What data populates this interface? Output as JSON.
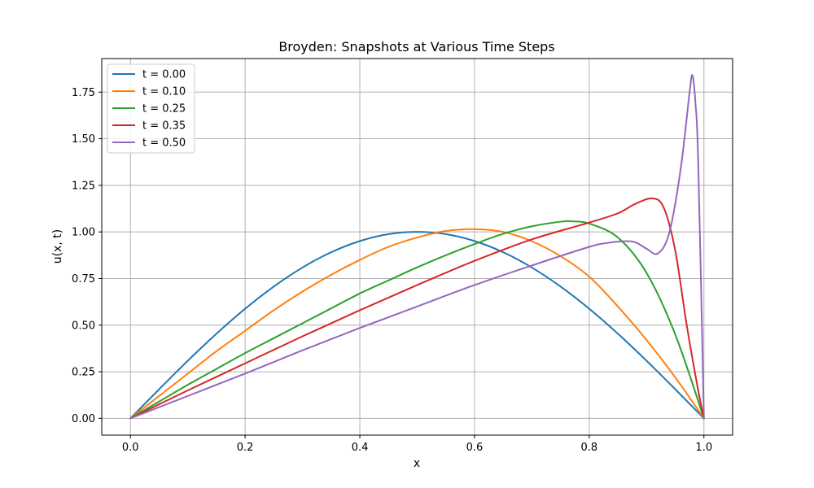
{
  "chart_data": {
    "type": "line",
    "title": "Broyden: Snapshots at Various Time Steps",
    "xlabel": "x",
    "ylabel": "u(x, t)",
    "xlim": [
      -0.05,
      1.05
    ],
    "ylim": [
      -0.09,
      1.93
    ],
    "xticks": [
      0.0,
      0.2,
      0.4,
      0.6,
      0.8,
      1.0
    ],
    "xtick_labels": [
      "0.0",
      "0.2",
      "0.4",
      "0.6",
      "0.8",
      "1.0"
    ],
    "yticks": [
      0.0,
      0.25,
      0.5,
      0.75,
      1.0,
      1.25,
      1.5,
      1.75
    ],
    "ytick_labels": [
      "0.00",
      "0.25",
      "0.50",
      "0.75",
      "1.00",
      "1.25",
      "1.50",
      "1.75"
    ],
    "grid": true,
    "legend_position": "top-left",
    "series": [
      {
        "name": "t = 0.00",
        "color": "#1f77b4",
        "x": [
          0.0,
          0.05,
          0.1,
          0.15,
          0.2,
          0.25,
          0.3,
          0.35,
          0.4,
          0.45,
          0.5,
          0.55,
          0.6,
          0.65,
          0.7,
          0.75,
          0.8,
          0.85,
          0.9,
          0.95,
          1.0
        ],
        "y": [
          0.0,
          0.156,
          0.309,
          0.454,
          0.588,
          0.707,
          0.809,
          0.891,
          0.951,
          0.988,
          1.0,
          0.988,
          0.951,
          0.891,
          0.809,
          0.707,
          0.588,
          0.454,
          0.309,
          0.156,
          0.0
        ]
      },
      {
        "name": "t = 0.10",
        "color": "#ff7f0e",
        "x": [
          0.0,
          0.05,
          0.1,
          0.15,
          0.2,
          0.25,
          0.3,
          0.35,
          0.4,
          0.45,
          0.5,
          0.55,
          0.6,
          0.65,
          0.7,
          0.75,
          0.8,
          0.85,
          0.9,
          0.95,
          1.0
        ],
        "y": [
          0.0,
          0.12,
          0.24,
          0.36,
          0.47,
          0.58,
          0.68,
          0.77,
          0.85,
          0.92,
          0.97,
          1.005,
          1.015,
          1.0,
          0.95,
          0.87,
          0.76,
          0.6,
          0.42,
          0.22,
          0.0
        ]
      },
      {
        "name": "t = 0.25",
        "color": "#2ca02c",
        "x": [
          0.0,
          0.05,
          0.1,
          0.15,
          0.2,
          0.25,
          0.3,
          0.35,
          0.4,
          0.45,
          0.5,
          0.55,
          0.6,
          0.65,
          0.7,
          0.75,
          0.77,
          0.8,
          0.85,
          0.9,
          0.95,
          1.0
        ],
        "y": [
          0.0,
          0.09,
          0.18,
          0.265,
          0.35,
          0.43,
          0.51,
          0.59,
          0.67,
          0.74,
          0.81,
          0.875,
          0.935,
          0.99,
          1.03,
          1.055,
          1.057,
          1.045,
          0.97,
          0.78,
          0.45,
          0.0
        ]
      },
      {
        "name": "t = 0.35",
        "color": "#d62728",
        "x": [
          0.0,
          0.1,
          0.2,
          0.3,
          0.4,
          0.5,
          0.6,
          0.7,
          0.8,
          0.85,
          0.88,
          0.91,
          0.93,
          0.95,
          0.97,
          0.99,
          1.0
        ],
        "y": [
          0.0,
          0.15,
          0.295,
          0.44,
          0.58,
          0.715,
          0.845,
          0.96,
          1.05,
          1.1,
          1.15,
          1.18,
          1.13,
          0.9,
          0.5,
          0.15,
          0.0
        ]
      },
      {
        "name": "t = 0.50",
        "color": "#9467bd",
        "x": [
          0.0,
          0.1,
          0.2,
          0.3,
          0.4,
          0.5,
          0.6,
          0.7,
          0.8,
          0.83,
          0.86,
          0.88,
          0.9,
          0.92,
          0.94,
          0.96,
          0.975,
          0.98,
          0.985,
          0.99,
          1.0
        ],
        "y": [
          0.0,
          0.12,
          0.24,
          0.365,
          0.485,
          0.6,
          0.715,
          0.82,
          0.92,
          0.94,
          0.95,
          0.945,
          0.91,
          0.885,
          1.0,
          1.35,
          1.75,
          1.84,
          1.7,
          1.38,
          0.0
        ]
      }
    ]
  }
}
